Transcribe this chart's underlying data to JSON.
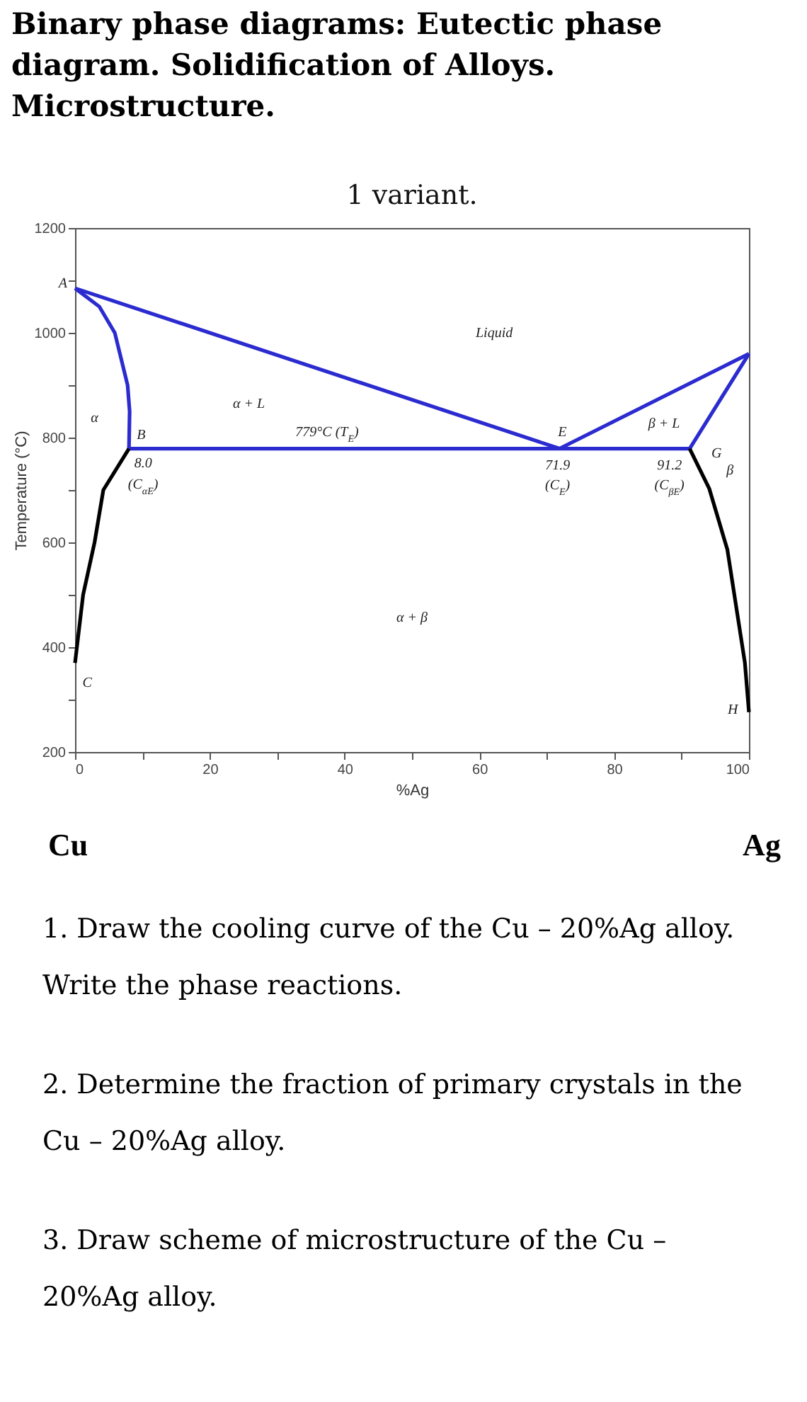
{
  "chart_data": {
    "type": "line",
    "title": "Binary phase diagrams: Eutectic phase diagram. Solidification of Alloys. Microstructure.",
    "subtitle": "1 variant.",
    "xlabel": "%Ag",
    "ylabel": "Temperature (°C)",
    "xlim": [
      0,
      100
    ],
    "xticks": [
      0,
      {
        "value": 10,
        "label": null
      },
      20,
      {
        "value": 30,
        "label": null
      },
      40,
      {
        "value": 50,
        "label": null
      },
      60,
      {
        "value": 70,
        "label": null
      },
      80,
      {
        "value": 90,
        "label": null
      },
      100
    ],
    "ylim": [
      200,
      1200
    ],
    "yticks": [
      200,
      {
        "value": 300,
        "label": null
      },
      400,
      {
        "value": 500,
        "label": null
      },
      600,
      {
        "value": 700,
        "label": null
      },
      800,
      {
        "value": 900,
        "label": null
      },
      1000,
      {
        "value": 1100,
        "label": null
      },
      1200
    ],
    "marker": "none",
    "line_style": "solid",
    "series": [
      {
        "color": "#2b2bd0",
        "x": [
          0,
          71.9
        ],
        "values": [
          1085,
          779
        ]
      },
      {
        "color": "#2b2bd0",
        "x": [
          71.9,
          100
        ],
        "values": [
          779,
          960
        ]
      },
      {
        "color": "#2b2bd0",
        "x": [
          0,
          3.6,
          5.9,
          7.8,
          8.1,
          8.0
        ],
        "values": [
          1085,
          1050,
          1000,
          900,
          850,
          779
        ]
      },
      {
        "color": "#2b2bd0",
        "x": [
          8.0,
          91.2
        ],
        "values": [
          779,
          779
        ]
      },
      {
        "color": "#2b2bd0",
        "x": [
          91.2,
          100
        ],
        "values": [
          779,
          960
        ]
      },
      {
        "color": "#000000",
        "x": [
          8.0,
          4.2,
          2.9,
          1.2,
          0
        ],
        "values": [
          779,
          700,
          600,
          500,
          370
        ]
      },
      {
        "color": "#000000",
        "x": [
          91.2,
          94.1,
          96.8,
          98.1,
          99.4,
          100
        ],
        "values": [
          779,
          703,
          586,
          478,
          370,
          276
        ]
      }
    ],
    "annotations": [
      "A",
      "α",
      "B",
      "8.0",
      "(C$_{αE}$)",
      "α + L",
      "779°C (T$_{E}$)",
      "Liquid",
      "E",
      "71.9",
      "(C$_{E}$)",
      "β + L",
      "G",
      "β",
      "91.2",
      "(C$_{βE}$)",
      "α + β",
      "C",
      "H",
      "Cu",
      "Ag",
      "1. Draw the cooling curve of the Cu – 20%Ag alloy. Write the phase reactions.",
      "2. Determine the fraction of primary crystals in the Cu – 20%Ag alloy.",
      "3. Draw scheme of microstructure of the Cu – 20%Ag alloy."
    ]
  }
}
